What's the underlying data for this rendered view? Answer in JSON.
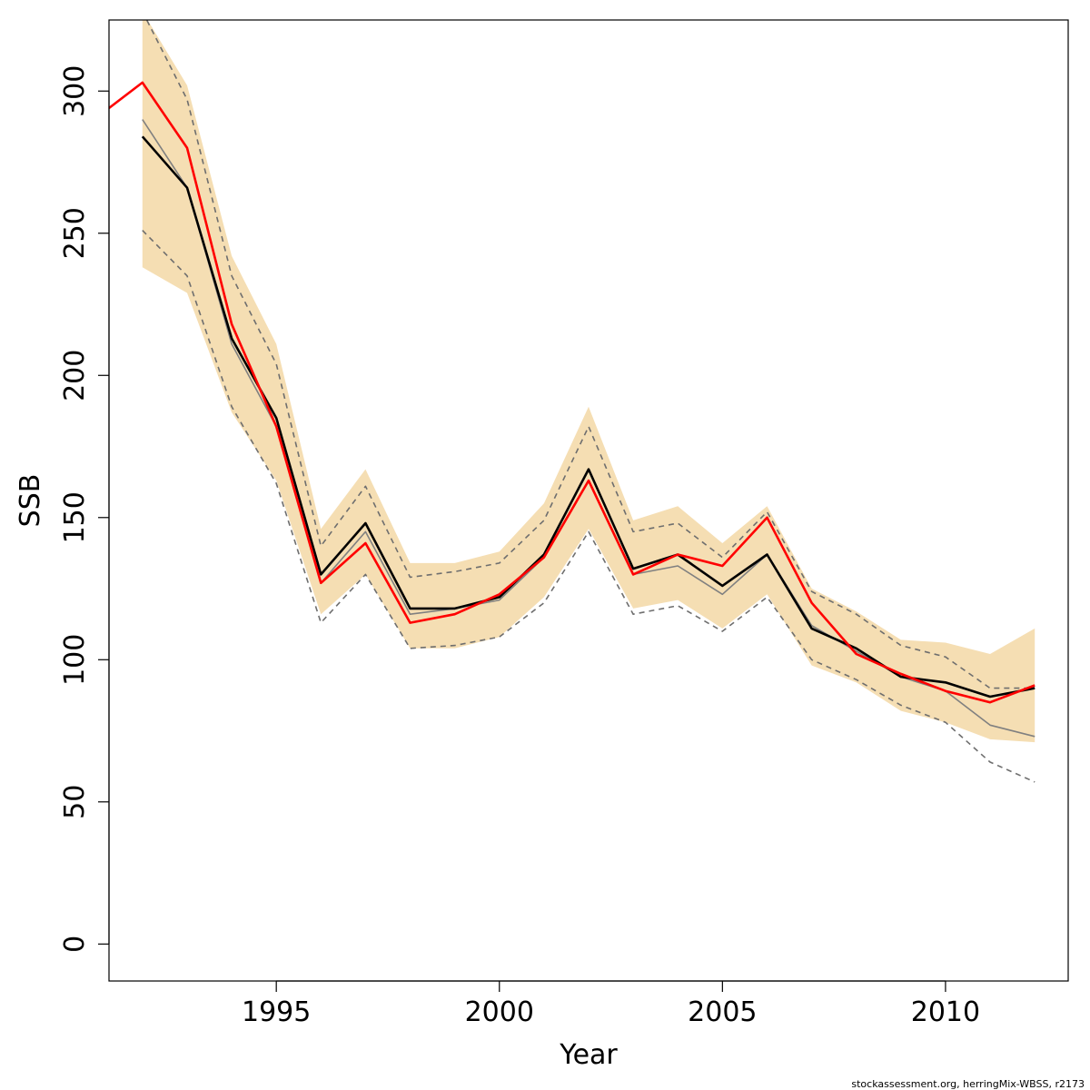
{
  "chart_data": {
    "type": "line",
    "xlabel": "Year",
    "ylabel": "SSB",
    "xlim": [
      1991.25,
      2012.75
    ],
    "ylim": [
      -13,
      325
    ],
    "xticks": [
      1995,
      2000,
      2005,
      2010
    ],
    "yticks": [
      0,
      50,
      100,
      150,
      200,
      250,
      300
    ],
    "grid": false,
    "x": [
      1992,
      1993,
      1994,
      1995,
      1996,
      1997,
      1998,
      1999,
      2000,
      2001,
      2002,
      2003,
      2004,
      2005,
      2006,
      2007,
      2008,
      2009,
      2010,
      2011,
      2012
    ],
    "band": {
      "lower": [
        238,
        229,
        187,
        163,
        116,
        130,
        104,
        104,
        108,
        122,
        146,
        118,
        121,
        111,
        123,
        98,
        92,
        82,
        78,
        72,
        71
      ],
      "upper": [
        328,
        302,
        242,
        211,
        146,
        167,
        134,
        134,
        138,
        155,
        189,
        149,
        154,
        141,
        154,
        125,
        117,
        107,
        106,
        102,
        111
      ],
      "color": "#f5deb3"
    },
    "series": [
      {
        "name": "",
        "color": "#000000",
        "style": "solid",
        "width": 2.6,
        "values": [
          284,
          266,
          213,
          185,
          130,
          148,
          118,
          118,
          122,
          137,
          167,
          132,
          137,
          126,
          137,
          111,
          104,
          94,
          92,
          87,
          90
        ]
      },
      {
        "name": "",
        "color": "#808080",
        "style": "solid",
        "width": 1.6,
        "values": [
          290,
          266,
          211,
          182,
          127,
          145,
          116,
          118,
          121,
          136,
          163,
          130,
          133,
          123,
          137,
          112,
          103,
          94,
          89,
          77,
          73
        ]
      },
      {
        "name": "",
        "color": "#6e6e6e",
        "style": "dashed",
        "width": 1.6,
        "values": [
          251,
          235,
          189,
          162,
          113,
          130,
          104,
          105,
          108,
          120,
          145,
          116,
          119,
          110,
          122,
          100,
          93,
          84,
          78,
          64,
          57
        ]
      },
      {
        "name": "",
        "color": "#6e6e6e",
        "style": "dashed",
        "width": 1.6,
        "values": [
          328,
          297,
          235,
          204,
          140,
          161,
          129,
          131,
          134,
          149,
          182,
          145,
          148,
          136,
          152,
          124,
          116,
          105,
          101,
          90,
          90
        ]
      },
      {
        "name": "",
        "color": "#ff0000",
        "style": "solid",
        "width": 2.6,
        "x": [
          1991.25,
          1992,
          1993,
          1994,
          1995,
          1996,
          1997,
          1998,
          1999,
          2000,
          2001,
          2002,
          2003,
          2004,
          2005,
          2006,
          2007,
          2008,
          2009,
          2010,
          2011,
          2012
        ],
        "values": [
          294,
          303,
          280,
          218,
          182,
          127,
          141,
          113,
          116,
          123,
          136,
          163,
          130,
          137,
          133,
          150,
          120,
          102,
          95,
          89,
          85,
          91
        ]
      }
    ]
  },
  "footer": {
    "credit": "stockassessment.org, herringMix-WBSS, r2173"
  }
}
